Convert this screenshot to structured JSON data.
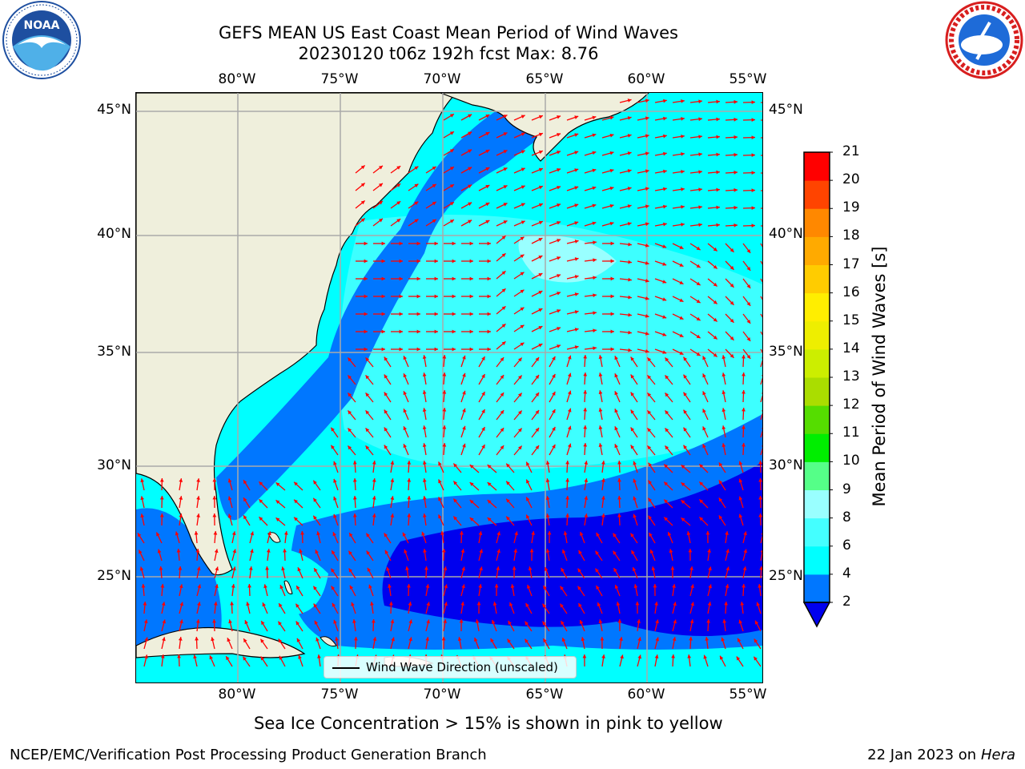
{
  "header": {
    "title_line1": "GEFS MEAN US East Coast Mean Period of Wind Waves",
    "title_line2": "20230120 t06z 192h fcst   Max: 8.76"
  },
  "logos": {
    "left": {
      "name": "NOAA",
      "ring_text": "NATIONAL OCEANIC AND ATMOSPHERIC ADMINISTRATION · U.S. DEPARTMENT OF COMMERCE",
      "color": "#1e4fa0"
    },
    "right": {
      "name": "NATIONAL WEATHER SERVICE",
      "color": "#d81e1e"
    }
  },
  "map": {
    "lon_labels": [
      "80°W",
      "75°W",
      "70°W",
      "65°W",
      "60°W",
      "55°W"
    ],
    "lat_labels": [
      "45°N",
      "40°N",
      "35°N",
      "30°N",
      "25°N"
    ],
    "legend_text": "Wind Wave Direction (unscaled)",
    "land_color": "#efefdc",
    "arrow_color": "#ff0000"
  },
  "colorbar": {
    "label": "Mean Period of Wind Waves [s]",
    "ticks": [
      "2",
      "4",
      "6",
      "8",
      "9",
      "10",
      "11",
      "12",
      "13",
      "14",
      "15",
      "16",
      "17",
      "18",
      "19",
      "20",
      "21"
    ],
    "colors": [
      "#0000ee",
      "#0077ff",
      "#00ffff",
      "#44ffff",
      "#99ffff",
      "#55ff88",
      "#00ee00",
      "#55dd00",
      "#aadd00",
      "#ccee00",
      "#eeee00",
      "#ffee00",
      "#ffcc00",
      "#ffaa00",
      "#ff8800",
      "#ff4400",
      "#ff0000"
    ],
    "under_color": "#0000ee"
  },
  "caption": "Sea Ice Concentration > 15% is shown in pink to yellow",
  "footer": {
    "left": "NCEP/EMC/Verification Post Processing Product Generation Branch",
    "right_prefix": "22 Jan 2023 on ",
    "right_italic": "Hera"
  }
}
